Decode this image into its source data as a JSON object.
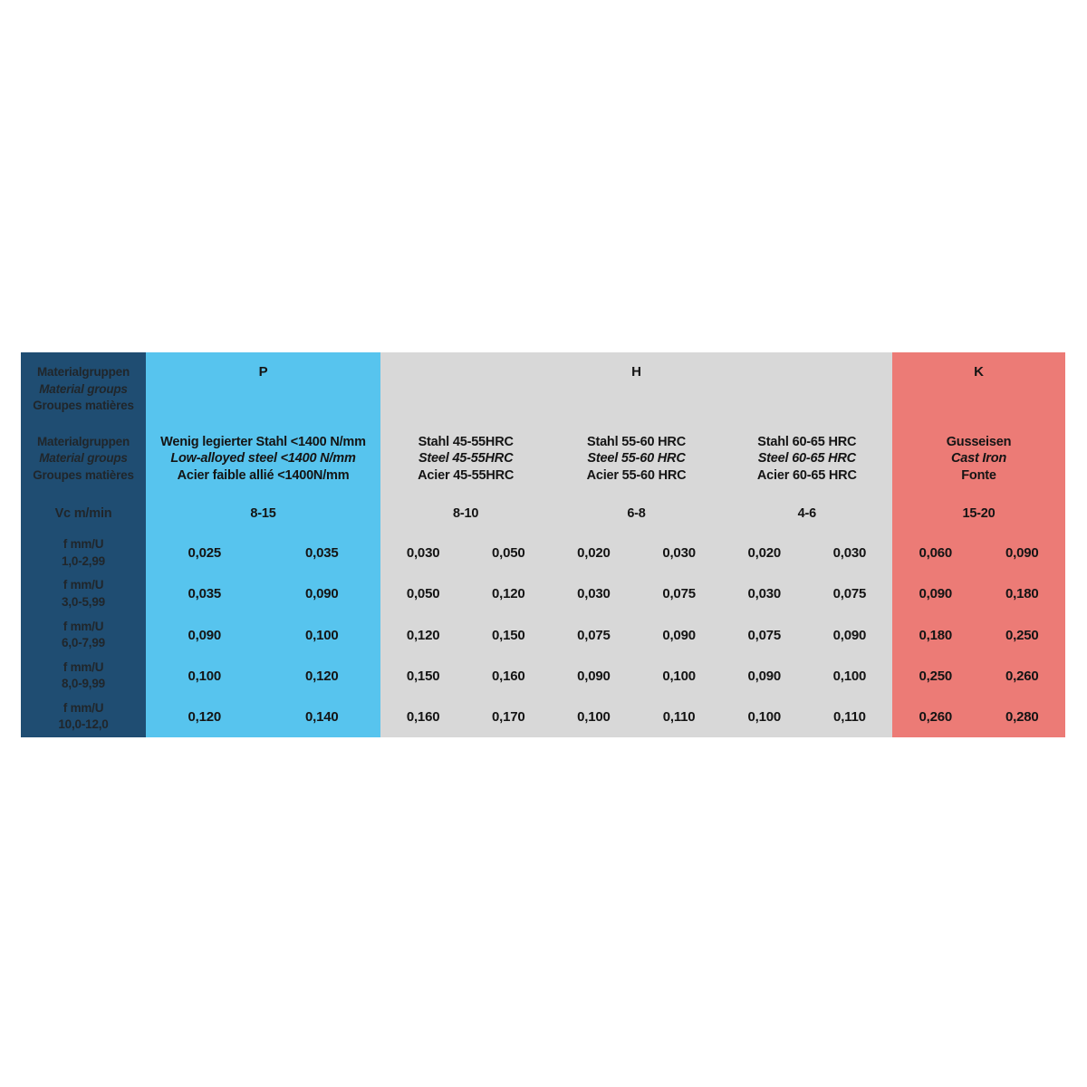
{
  "table": {
    "colors": {
      "label_bg": "#1F4D72",
      "label_text": "#20262B",
      "body_text": "#141414",
      "p_bg": "#57C4EE",
      "h_bg": "#D8D8D8",
      "k_bg": "#EC7B76"
    },
    "label_column": {
      "group_header": [
        "Materialgruppen",
        "Material groups",
        "Groupes matières"
      ],
      "material_header": [
        "Materialgruppen",
        "Material groups",
        "Groupes matières"
      ],
      "vc_label": "Vc m/min",
      "row_labels": [
        [
          "f mm/U",
          "1,0-2,99"
        ],
        [
          "f mm/U",
          "3,0-5,99"
        ],
        [
          "f mm/U",
          "6,0-7,99"
        ],
        [
          "f mm/U",
          "8,0-9,99"
        ],
        [
          "f mm/U",
          "10,0-12,0"
        ]
      ]
    },
    "groups": [
      {
        "letter": "P",
        "bg": "#57C4EE",
        "materials": [
          {
            "desc": [
              "Wenig legierter Stahl <1400 N/mm",
              "Low-alloyed steel <1400 N/mm",
              "Acier faible allié <1400N/mm"
            ],
            "vc": "8-15",
            "f": [
              [
                "0,025",
                "0,035"
              ],
              [
                "0,035",
                "0,090"
              ],
              [
                "0,090",
                "0,100"
              ],
              [
                "0,100",
                "0,120"
              ],
              [
                "0,120",
                "0,140"
              ]
            ]
          }
        ]
      },
      {
        "letter": "H",
        "bg": "#D8D8D8",
        "materials": [
          {
            "desc": [
              "Stahl 45-55HRC",
              "Steel 45-55HRC",
              "Acier 45-55HRC"
            ],
            "vc": "8-10",
            "f": [
              [
                "0,030",
                "0,050"
              ],
              [
                "0,050",
                "0,120"
              ],
              [
                "0,120",
                "0,150"
              ],
              [
                "0,150",
                "0,160"
              ],
              [
                "0,160",
                "0,170"
              ]
            ]
          },
          {
            "desc": [
              "Stahl 55-60 HRC",
              "Steel 55-60 HRC",
              "Acier 55-60 HRC"
            ],
            "vc": "6-8",
            "f": [
              [
                "0,020",
                "0,030"
              ],
              [
                "0,030",
                "0,075"
              ],
              [
                "0,075",
                "0,090"
              ],
              [
                "0,090",
                "0,100"
              ],
              [
                "0,100",
                "0,110"
              ]
            ]
          },
          {
            "desc": [
              "Stahl 60-65 HRC",
              "Steel 60-65 HRC",
              "Acier 60-65 HRC"
            ],
            "vc": "4-6",
            "f": [
              [
                "0,020",
                "0,030"
              ],
              [
                "0,030",
                "0,075"
              ],
              [
                "0,075",
                "0,090"
              ],
              [
                "0,090",
                "0,100"
              ],
              [
                "0,100",
                "0,110"
              ]
            ]
          }
        ]
      },
      {
        "letter": "K",
        "bg": "#EC7B76",
        "materials": [
          {
            "desc": [
              "Gusseisen",
              "Cast Iron",
              "Fonte"
            ],
            "vc": "15-20",
            "f": [
              [
                "0,060",
                "0,090"
              ],
              [
                "0,090",
                "0,180"
              ],
              [
                "0,180",
                "0,250"
              ],
              [
                "0,250",
                "0,260"
              ],
              [
                "0,260",
                "0,280"
              ]
            ]
          }
        ]
      }
    ]
  }
}
